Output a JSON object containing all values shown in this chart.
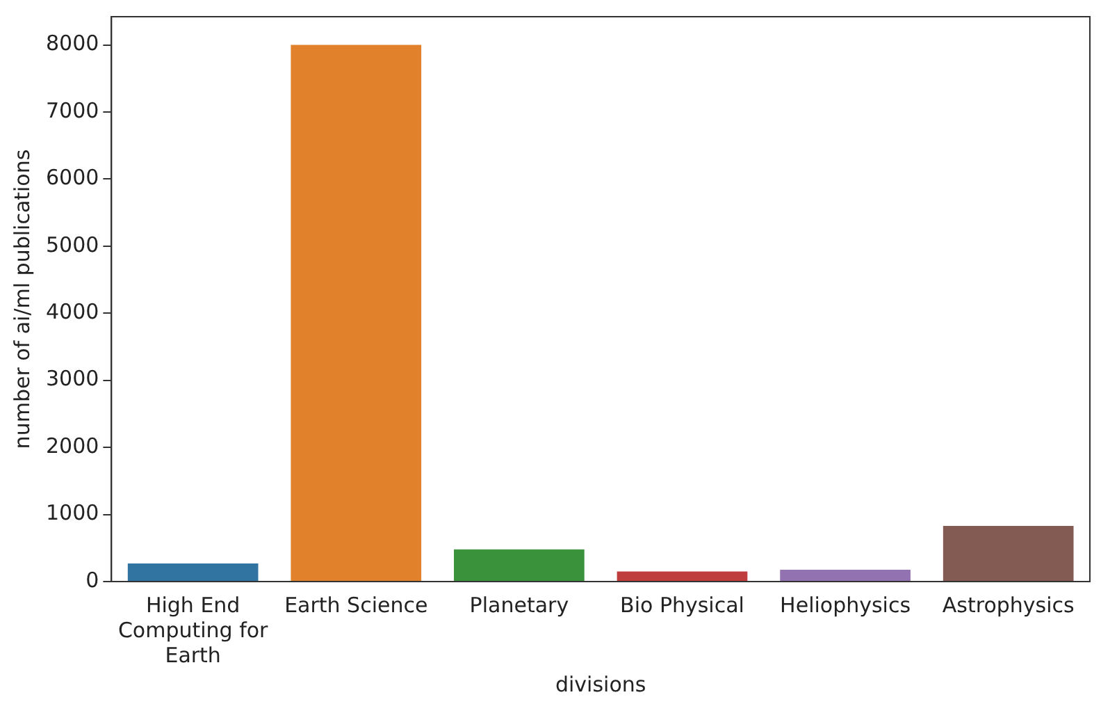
{
  "chart_data": {
    "type": "bar",
    "xlabel": "divisions",
    "ylabel": "number of ai/ml publications",
    "categories": [
      "High End Computing for Earth",
      "Earth Science",
      "Planetary",
      "Bio Physical",
      "Heliophysics",
      "Astrophysics"
    ],
    "values": [
      270,
      8000,
      480,
      150,
      175,
      830
    ],
    "colors": [
      "#3274a1",
      "#e1812c",
      "#3a923a",
      "#c03d3e",
      "#9372b2",
      "#845b53"
    ],
    "ylim": [
      0,
      8420
    ],
    "yticks": [
      0,
      1000,
      2000,
      3000,
      4000,
      5000,
      6000,
      7000,
      8000
    ],
    "grid": false,
    "legend": false
  }
}
